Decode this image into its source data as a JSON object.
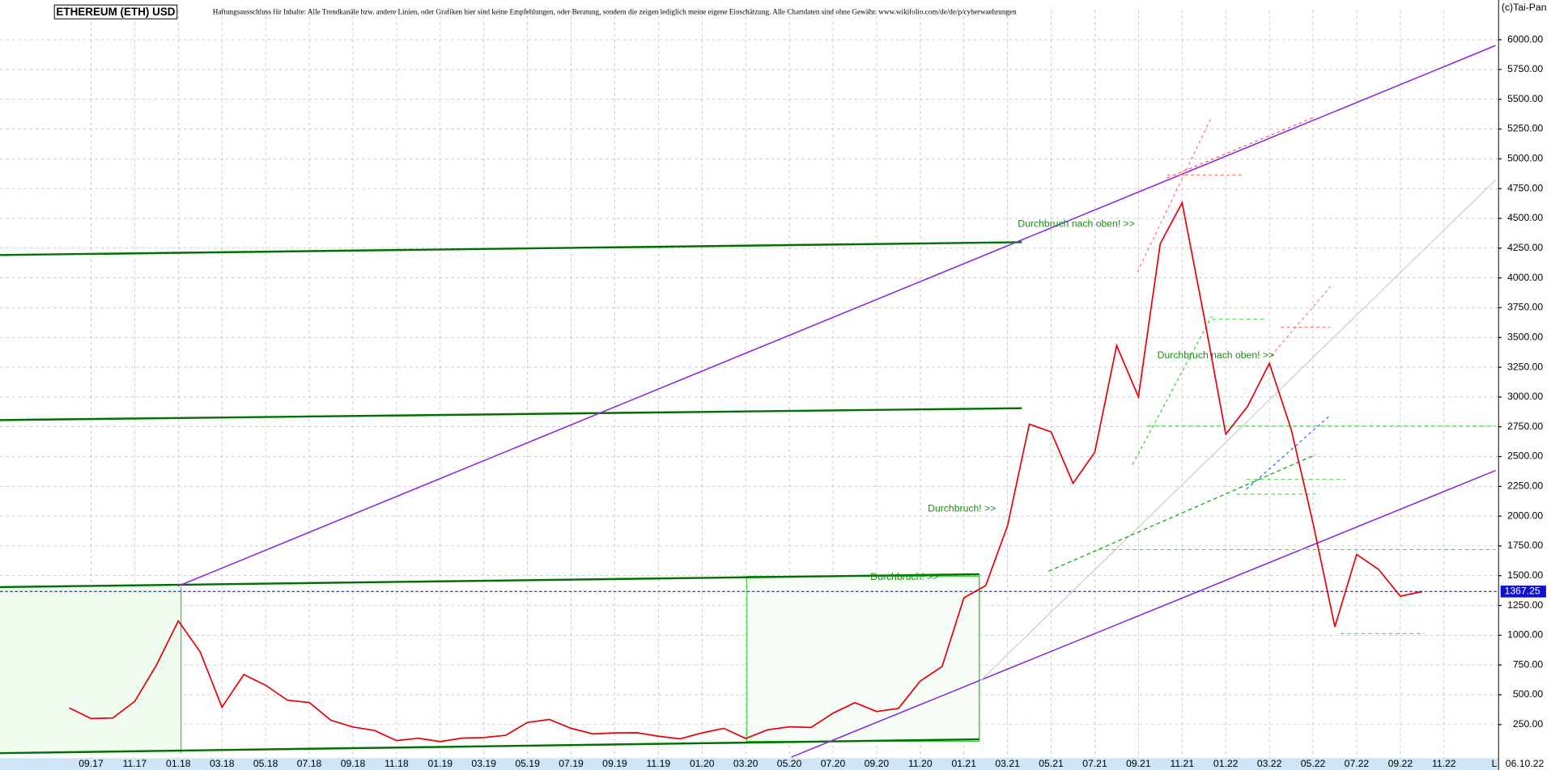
{
  "chart_data": {
    "type": "line",
    "title": "ETHEREUM (ETH) USD",
    "subtitle": "Haftungsausschluss für Inhalte: Alle Trendkanäle bzw. andere Linien, oder Grafiken hier sind keine Empfehlungen, oder Beratung, sondern die zeigen lediglich meine eigene Einschätzung. Alle Chartdaten sind ohne Gewähr. www.wikifolio.com/de/de/p/cyberwaehrungen",
    "copyright": "(c)Tai-Pan",
    "annotations": [
      "Durchbruch nach oben! >>",
      "Durchbruch nach oben! >>",
      "Durchbruch! >>",
      "Durchbruch! >>"
    ],
    "categories": [
      null,
      "09.17",
      null,
      "11.17",
      null,
      "01.18",
      null,
      "03.18",
      null,
      "05.18",
      null,
      "07.18",
      null,
      "09.18",
      null,
      "11.18",
      null,
      "01.19",
      null,
      "03.19",
      null,
      "05.19",
      null,
      "07.19",
      null,
      "09.19",
      null,
      "11.19",
      null,
      "01.20",
      null,
      "03.20",
      null,
      "05.20",
      null,
      "07.20",
      null,
      "09.20",
      null,
      "11.20",
      null,
      "01.21",
      null,
      "03.21",
      null,
      "05.21",
      null,
      "07.21",
      null,
      "09.21",
      null,
      "11.21",
      null,
      "01.22",
      null,
      "03.22",
      null,
      "05.22",
      null,
      "07.22",
      null,
      "09.22",
      null,
      "11.22"
    ],
    "values": [
      390,
      300,
      305,
      445,
      750,
      1120,
      860,
      395,
      670,
      580,
      455,
      435,
      285,
      230,
      200,
      115,
      135,
      107,
      136,
      141,
      160,
      268,
      293,
      218,
      172,
      180,
      182,
      152,
      130,
      180,
      218,
      133,
      206,
      231,
      226,
      345,
      434,
      359,
      386,
      615,
      737,
      1314,
      1416,
      1919,
      2772,
      2707,
      2275,
      2537,
      3433,
      3001,
      4288,
      4631,
      3683,
      2688,
      2920,
      3283,
      2727,
      1942,
      1071,
      1679,
      1553,
      1328,
      1367,
      null
    ],
    "color": "#e8000b",
    "last_price": 1367.25,
    "last_date": "06.10.22",
    "axis_marker": "L",
    "ylim": [
      -15,
      6250
    ],
    "yticks": [
      {
        "value": 250,
        "label": "250.00"
      },
      {
        "value": 500,
        "label": "500.00"
      },
      {
        "value": 750,
        "label": "750.00"
      },
      {
        "value": 1000,
        "label": "1000.00"
      },
      {
        "value": 1250,
        "label": "1250.00"
      },
      {
        "value": 1500,
        "label": "1500.00"
      },
      {
        "value": 1750,
        "label": "1750.00"
      },
      {
        "value": 2000,
        "label": "2000.00"
      },
      {
        "value": 2250,
        "label": "2250.00"
      },
      {
        "value": 2500,
        "label": "2500.00"
      },
      {
        "value": 2750,
        "label": "2750.00"
      },
      {
        "value": 3000,
        "label": "3000.00"
      },
      {
        "value": 3250,
        "label": "3250.00"
      },
      {
        "value": 3500,
        "label": "3500.00"
      },
      {
        "value": 3750,
        "label": "3750.00"
      },
      {
        "value": 4000,
        "label": "4000.00"
      },
      {
        "value": 4250,
        "label": "4250.00"
      },
      {
        "value": 4500,
        "label": "4500.00"
      },
      {
        "value": 4750,
        "label": "4750.00"
      },
      {
        "value": 5000,
        "label": "5000.00"
      },
      {
        "value": 5250,
        "label": "5250.00"
      },
      {
        "value": 5500,
        "label": "5500.00"
      },
      {
        "value": 5750,
        "label": "5750.00"
      },
      {
        "value": 6000,
        "label": "6000.00"
      }
    ],
    "grid": true
  }
}
